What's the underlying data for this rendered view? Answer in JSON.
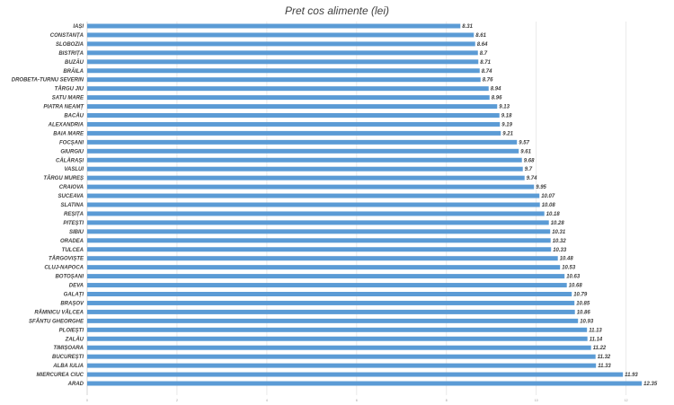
{
  "chart_data": {
    "type": "bar",
    "orientation": "horizontal",
    "title": "Pret cos alimente (lei)",
    "categories": [
      "IAȘI",
      "CONSTANȚA",
      "SLOBOZIA",
      "BISTRIȚA",
      "BUZĂU",
      "BRĂILA",
      "DROBETA-TURNU SEVERIN",
      "TÂRGU JIU",
      "SATU MARE",
      "PIATRA NEAMȚ",
      "BACĂU",
      "ALEXANDRIA",
      "BAIA MARE",
      "FOCȘANI",
      "GIURGIU",
      "CĂLĂRAȘI",
      "VASLUI",
      "TÂRGU MUREȘ",
      "CRAIOVA",
      "SUCEAVA",
      "SLATINA",
      "REȘIȚA",
      "PITEȘTI",
      "SIBIU",
      "ORADEA",
      "TULCEA",
      "TÂRGOVIȘTE",
      "CLUJ-NAPOCA",
      "BOTOȘANI",
      "DEVA",
      "GALAȚI",
      "BRAȘOV",
      "RÂMNICU VÂLCEA",
      "SFÂNTU GHEORGHE",
      "PLOIEȘTI",
      "ZALĂU",
      "TIMIȘOARA",
      "BUCUREȘTI",
      "ALBA IULIA",
      "MIERCUREA CIUC",
      "ARAD"
    ],
    "values": [
      8.31,
      8.61,
      8.64,
      8.7,
      8.71,
      8.74,
      8.76,
      8.94,
      8.96,
      9.13,
      9.18,
      9.19,
      9.21,
      9.57,
      9.61,
      9.68,
      9.7,
      9.74,
      9.95,
      10.07,
      10.08,
      10.18,
      10.28,
      10.31,
      10.32,
      10.33,
      10.48,
      10.53,
      10.63,
      10.68,
      10.79,
      10.85,
      10.86,
      10.93,
      11.13,
      11.14,
      11.22,
      11.32,
      11.33,
      11.93,
      12.35
    ],
    "xlim": [
      0,
      12
    ],
    "xticks": [
      0,
      2,
      4,
      6,
      8,
      10,
      12
    ],
    "grid": true,
    "bar_color": "#5b9bd5"
  }
}
